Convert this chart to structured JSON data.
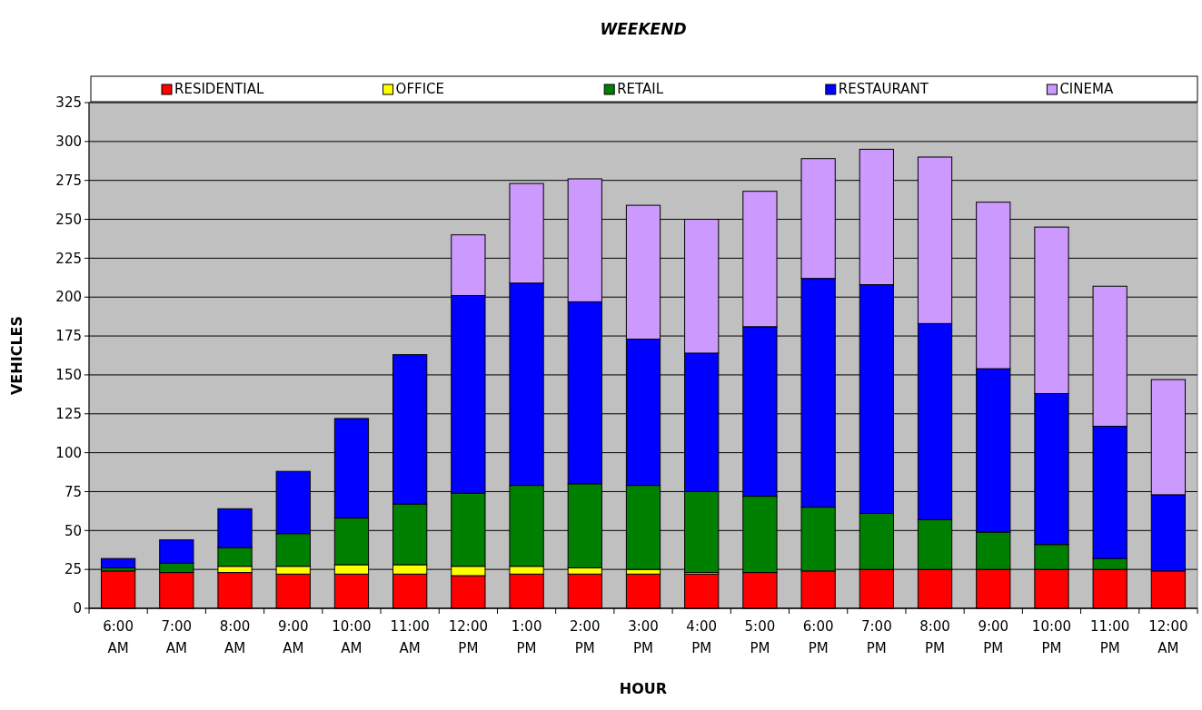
{
  "chart_data": {
    "type": "bar",
    "title": "WEEKEND",
    "xlabel": "HOUR",
    "ylabel": "VEHICLES",
    "stacked": true,
    "grid": "y",
    "legend": "top",
    "categories": [
      "6:00 AM",
      "7:00 AM",
      "8:00 AM",
      "9:00 AM",
      "10:00 AM",
      "11:00 AM",
      "12:00 PM",
      "1:00 PM",
      "2:00 PM",
      "3:00 PM",
      "4:00 PM",
      "5:00 PM",
      "6:00 PM",
      "7:00 PM",
      "8:00 PM",
      "9:00 PM",
      "10:00 PM",
      "11:00 PM",
      "12:00 AM"
    ],
    "series": [
      {
        "name": "RESIDENTIAL",
        "color": "#ff0000",
        "values": [
          24,
          23,
          23,
          22,
          22,
          22,
          21,
          22,
          22,
          22,
          22,
          23,
          24,
          25,
          25,
          25,
          25,
          25,
          24
        ]
      },
      {
        "name": "OFFICE",
        "color": "#ffff00",
        "values": [
          0,
          null,
          4,
          5,
          6,
          6,
          6,
          5,
          4,
          3,
          1,
          null,
          0,
          0,
          0,
          0,
          0,
          0,
          0
        ]
      },
      {
        "name": "RETAIL",
        "color": "#008000",
        "values": [
          2,
          6,
          12,
          21,
          30,
          39,
          47,
          52,
          54,
          54,
          52,
          49,
          41,
          36,
          32,
          24,
          16,
          7,
          0
        ]
      },
      {
        "name": "RESTAURANT",
        "color": "#0000ff",
        "values": [
          6,
          15,
          25,
          40,
          64,
          96,
          127,
          130,
          117,
          94,
          89,
          109,
          147,
          147,
          126,
          105,
          97,
          85,
          49
        ]
      },
      {
        "name": "CINEMA",
        "color": "#cc99ff",
        "values": [
          0,
          0,
          0,
          0,
          0,
          0,
          39,
          64,
          79,
          86,
          86,
          87,
          77,
          87,
          107,
          107,
          107,
          90,
          74
        ]
      }
    ],
    "ylim": [
      0,
      325
    ],
    "yticks": [
      0,
      25,
      50,
      75,
      100,
      125,
      150,
      175,
      200,
      225,
      250,
      275,
      300,
      325
    ]
  }
}
